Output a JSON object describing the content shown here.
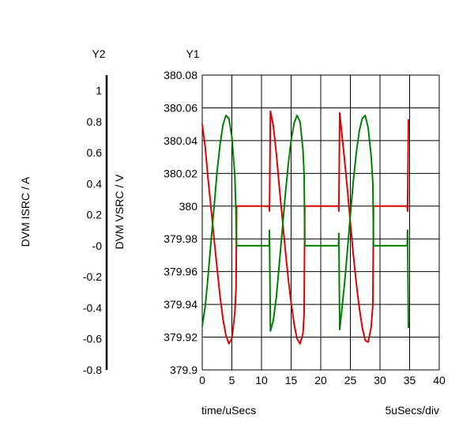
{
  "chart_data": {
    "type": "line",
    "y1_axis_title": "Y1",
    "y2_axis_title": "Y2",
    "y1_label": "DVM VSRC / V",
    "y2_label": "DVM ISRC / A",
    "xlabel": "time/uSecs",
    "x_division_note": "5uSecs/div",
    "xlim": [
      0,
      40
    ],
    "x_ticks": [
      "0",
      "5",
      "10",
      "15",
      "20",
      "25",
      "30",
      "35",
      "40"
    ],
    "y1_lim": [
      379.9,
      380.08
    ],
    "y1_ticks": [
      "379.9",
      "379.92",
      "379.94",
      "379.96",
      "379.98",
      "380",
      "380.02",
      "380.04",
      "380.06",
      "380.08"
    ],
    "y2_lim": [
      -0.8,
      1.1
    ],
    "y2_ticks": [
      "-0.8",
      "-0.6",
      "-0.4",
      "-0.2",
      "-0",
      "0.2",
      "0.4",
      "0.6",
      "0.8",
      "1"
    ],
    "grid": true,
    "colors": {
      "voltage": "#e00000",
      "current": "#008000",
      "grid": "#000000"
    },
    "series": [
      {
        "axis": "y1",
        "color": "#e00000",
        "x": [
          0,
          0.5,
          1,
          1.5,
          2,
          2.5,
          3,
          3.5,
          4,
          4.5,
          5,
          5.5,
          5.7,
          5.8,
          8,
          11.3,
          11.35,
          11.5,
          12,
          12.5,
          13,
          13.5,
          14,
          14.5,
          15,
          15.5,
          16,
          16.5,
          17,
          17.2,
          17.3,
          20,
          23,
          23.05,
          23.2,
          23.5,
          24,
          24.5,
          25,
          25.5,
          26,
          26.5,
          27,
          27.5,
          28,
          28.5,
          28.8,
          28.9,
          32,
          34.6,
          34.65,
          34.8
        ],
        "y": [
          380.05,
          380.036,
          380.016,
          379.998,
          379.98,
          379.962,
          379.945,
          379.931,
          379.921,
          379.916,
          379.919,
          379.935,
          379.95,
          380.0,
          380.0,
          380.0,
          379.997,
          380.058,
          380.049,
          380.032,
          380.012,
          379.993,
          379.974,
          379.956,
          379.941,
          379.928,
          379.919,
          379.916,
          379.922,
          379.935,
          380.0,
          380.0,
          380.0,
          379.997,
          380.057,
          380.046,
          380.029,
          380.01,
          379.99,
          379.97,
          379.953,
          379.938,
          379.926,
          379.918,
          379.917,
          379.926,
          379.94,
          380.0,
          380.0,
          380.0,
          379.997,
          380.053
        ]
      },
      {
        "axis": "y2",
        "color": "#008000",
        "x": [
          0,
          0.5,
          1,
          1.5,
          2,
          2.5,
          3,
          3.5,
          4,
          4.5,
          5,
          5.5,
          5.7,
          5.8,
          8,
          11.3,
          11.35,
          11.5,
          12,
          12.5,
          13,
          13.5,
          14,
          14.5,
          15,
          15.5,
          16,
          16.5,
          17,
          17.2,
          17.3,
          20,
          23,
          23.05,
          23.2,
          23.5,
          24,
          24.5,
          25,
          25.5,
          26,
          26.5,
          27,
          27.5,
          28,
          28.5,
          28.8,
          28.9,
          32,
          34.6,
          34.65,
          34.8
        ],
        "y": [
          -0.52,
          -0.39,
          -0.19,
          0.04,
          0.25,
          0.48,
          0.65,
          0.78,
          0.84,
          0.82,
          0.7,
          0.45,
          0.2,
          0.0,
          0.0,
          0.0,
          0.1,
          -0.55,
          -0.48,
          -0.33,
          -0.12,
          0.1,
          0.32,
          0.52,
          0.68,
          0.79,
          0.84,
          0.8,
          0.62,
          0.45,
          0.0,
          0.0,
          0.0,
          0.08,
          -0.54,
          -0.43,
          -0.25,
          -0.03,
          0.2,
          0.42,
          0.6,
          0.74,
          0.82,
          0.84,
          0.76,
          0.58,
          0.4,
          0.0,
          0.0,
          0.0,
          0.1,
          -0.53
        ]
      }
    ]
  }
}
